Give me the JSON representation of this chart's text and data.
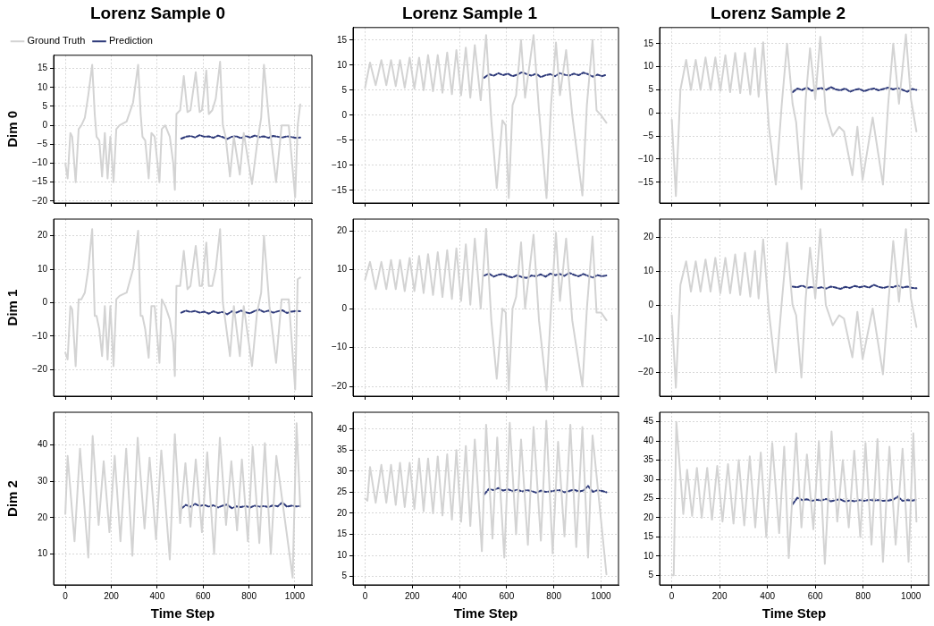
{
  "chart_data": [
    {
      "type": "line",
      "title": "Lorenz Sample 0",
      "ylabel": "Dim 0",
      "xlim": [
        -51,
        1074
      ],
      "xticks": [
        0,
        200,
        400,
        600,
        800,
        1000
      ],
      "ylim": [
        -20.5,
        18.5
      ],
      "yticks": [
        -20,
        -15,
        -10,
        -5,
        0,
        5,
        10,
        15
      ],
      "tick_labels": "y",
      "grid": true,
      "legend": "top left",
      "marker": "none",
      "series": [
        {
          "name": "Ground Truth",
          "color": "#d3d3d3",
          "line_style": "solid",
          "x": [
            0,
            10,
            22,
            30,
            45,
            58,
            70,
            85,
            100,
            117,
            128,
            136,
            148,
            160,
            172,
            184,
            196,
            210,
            222,
            236,
            267,
            295,
            317,
            328,
            336,
            348,
            363,
            375,
            389,
            410,
            420,
            435,
            455,
            470,
            477,
            484,
            500,
            516,
            532,
            545,
            568,
            585,
            595,
            614,
            625,
            640,
            655,
            674,
            686,
            698,
            717,
            734,
            760,
            777,
            813,
            835,
            853,
            865,
            889,
            918,
            942,
            973,
            1001,
            1012,
            1023
          ],
          "values": [
            -10,
            -14,
            -2,
            -3,
            -15,
            -1,
            0,
            2,
            8,
            16,
            3,
            -3,
            -4,
            -13.5,
            -2,
            -14,
            -3,
            -15,
            -1,
            0,
            1,
            6,
            16,
            3,
            -3,
            -4,
            -14,
            -2,
            -3,
            -15,
            -1,
            0,
            -3,
            -10,
            -17,
            3,
            4,
            13,
            3.5,
            4,
            14,
            3.5,
            4,
            14.5,
            3,
            4,
            7,
            16.8,
            0,
            -3,
            -13.5,
            -3,
            -13,
            -2,
            -15.5,
            -5,
            2,
            16,
            0,
            -15,
            0,
            0,
            -19,
            0,
            5.5
          ]
        },
        {
          "name": "Prediction",
          "color": "#2e3a7a",
          "line_style": "dashed",
          "x": [
            505,
            525,
            545,
            565,
            585,
            605,
            625,
            645,
            665,
            685,
            705,
            725,
            745,
            765,
            785,
            805,
            825,
            845,
            865,
            885,
            905,
            925,
            945,
            965,
            985,
            1005,
            1023
          ],
          "values": [
            -3.5,
            -3,
            -2.8,
            -3.2,
            -2.6,
            -3,
            -2.9,
            -3.3,
            -2.7,
            -3.1,
            -3.6,
            -3,
            -2.9,
            -3.4,
            -2.8,
            -3.2,
            -2.7,
            -3.1,
            -2.9,
            -3.3,
            -2.8,
            -3,
            -3.2,
            -2.9,
            -3.1,
            -3.3,
            -3.2
          ]
        }
      ]
    },
    {
      "type": "line",
      "title": "Lorenz Sample 1",
      "xlim": [
        -51,
        1074
      ],
      "xticks": [
        0,
        200,
        400,
        600,
        800,
        1000
      ],
      "ylim": [
        -17.5,
        17.5
      ],
      "yticks": [
        -15,
        -10,
        -5,
        0,
        5,
        10,
        15
      ],
      "tick_labels": "y",
      "grid": true,
      "marker": "none",
      "series": [
        {
          "color": "#d3d3d3",
          "line_style": "solid",
          "x": [
            0,
            21,
            45,
            69,
            90,
            110,
            130,
            148,
            168,
            189,
            209,
            229,
            248,
            267,
            288,
            308,
            328,
            348,
            368,
            387,
            407,
            427,
            446,
            465,
            490,
            513,
            535,
            558,
            582,
            596,
            609,
            625,
            640,
            661,
            678,
            714,
            737,
            769,
            788,
            809,
            826,
            852,
            878,
            921,
            940,
            964,
            981,
            1000,
            1023
          ],
          "values": [
            5.5,
            10.5,
            6,
            11,
            6,
            11,
            5.8,
            11,
            5.5,
            11.5,
            5.3,
            11.5,
            5,
            12,
            4.8,
            12,
            4.5,
            12.5,
            4.2,
            13,
            4,
            13.5,
            3.5,
            14,
            3,
            16,
            -1,
            -14.5,
            -1,
            -2,
            -16.5,
            2,
            4,
            15,
            3.5,
            16,
            1,
            -16.5,
            2,
            14.5,
            4,
            13,
            0,
            -16,
            2,
            15,
            1,
            0,
            -1.5
          ]
        },
        {
          "color": "#2e3a7a",
          "line_style": "dashed",
          "x": [
            505,
            525,
            545,
            565,
            585,
            605,
            625,
            645,
            665,
            685,
            705,
            725,
            745,
            765,
            785,
            805,
            825,
            845,
            865,
            885,
            905,
            925,
            945,
            965,
            985,
            1005,
            1023
          ],
          "values": [
            7.5,
            8.2,
            7.9,
            8.4,
            8,
            8.3,
            7.8,
            8.1,
            8.6,
            8.2,
            7.9,
            8.3,
            7.6,
            8,
            8.2,
            7.8,
            8.4,
            8.1,
            7.9,
            8.3,
            8,
            8.5,
            8.2,
            7.7,
            8.1,
            7.8,
            8.1
          ]
        }
      ]
    },
    {
      "type": "line",
      "title": "Lorenz Sample 2",
      "xlim": [
        -51,
        1074
      ],
      "xticks": [
        0,
        200,
        400,
        600,
        800,
        1000
      ],
      "ylim": [
        -19.5,
        18.5
      ],
      "yticks": [
        -15,
        -10,
        -5,
        0,
        5,
        10,
        15
      ],
      "tick_labels": "y",
      "grid": true,
      "marker": "none",
      "series": [
        {
          "color": "#d3d3d3",
          "line_style": "solid",
          "x": [
            0,
            17,
            36,
            60,
            80,
            100,
            120,
            141,
            162,
            182,
            203,
            224,
            244,
            265,
            286,
            306,
            328,
            348,
            363,
            382,
            406,
            435,
            460,
            482,
            505,
            520,
            542,
            560,
            578,
            600,
            621,
            644,
            673,
            700,
            720,
            755,
            776,
            798,
            840,
            883,
            905,
            926,
            950,
            979,
            1000,
            1023
          ],
          "values": [
            -1.5,
            -18,
            5,
            11.5,
            5,
            11.5,
            5,
            12,
            5,
            12,
            4.8,
            12.5,
            4.5,
            13,
            4.3,
            13,
            4,
            14,
            3.5,
            15.3,
            -3,
            -15.5,
            2,
            15,
            2,
            -2,
            -16.5,
            3,
            14,
            3,
            16.5,
            0,
            -5,
            -3,
            -4,
            -13.5,
            -3,
            -14.5,
            -1,
            -15.5,
            2,
            15,
            2,
            17,
            3,
            -4
          ]
        },
        {
          "color": "#2e3a7a",
          "line_style": "dashed",
          "x": [
            505,
            525,
            545,
            565,
            585,
            605,
            625,
            645,
            665,
            685,
            705,
            725,
            745,
            765,
            785,
            805,
            825,
            845,
            865,
            885,
            905,
            925,
            945,
            965,
            985,
            1005,
            1023
          ],
          "values": [
            4.5,
            5.3,
            5,
            5.5,
            4.8,
            5.2,
            5.4,
            5,
            5.6,
            5.1,
            4.9,
            5.3,
            4.6,
            5,
            5.2,
            4.7,
            5.1,
            5.3,
            4.9,
            5.2,
            5.5,
            5.1,
            5.4,
            5,
            4.6,
            5.2,
            5
          ]
        }
      ]
    },
    {
      "type": "line",
      "ylabel": "Dim 1",
      "xlim": [
        -51,
        1074
      ],
      "xticks": [
        0,
        200,
        400,
        600,
        800,
        1000
      ],
      "ylim": [
        -28,
        25
      ],
      "yticks": [
        -20,
        -10,
        0,
        10,
        20
      ],
      "tick_labels": "y",
      "grid": true,
      "marker": "none",
      "series": [
        {
          "color": "#d3d3d3",
          "line_style": "solid",
          "x": [
            0,
            10,
            22,
            30,
            45,
            58,
            70,
            85,
            100,
            117,
            128,
            136,
            148,
            160,
            172,
            184,
            196,
            210,
            222,
            236,
            267,
            295,
            317,
            328,
            336,
            348,
            363,
            375,
            389,
            410,
            420,
            435,
            455,
            470,
            477,
            484,
            500,
            516,
            532,
            545,
            568,
            585,
            595,
            614,
            625,
            640,
            655,
            674,
            686,
            698,
            717,
            734,
            760,
            777,
            813,
            835,
            853,
            865,
            889,
            918,
            942,
            973,
            1001,
            1012,
            1023
          ],
          "values": [
            -15,
            -17,
            -1,
            -2,
            -19,
            1,
            1,
            3,
            10,
            22,
            -4,
            -4,
            -8,
            -16,
            -1,
            -17,
            -1,
            -19,
            1,
            2,
            3,
            10,
            21.5,
            -4,
            -4,
            -8,
            -16.5,
            -1,
            -1,
            -18,
            1,
            -1,
            -5,
            -12,
            -22,
            5,
            5,
            15.5,
            4,
            5,
            17,
            5,
            5,
            18,
            5,
            5,
            10,
            22,
            0,
            -6,
            -16,
            -1,
            -16,
            -1,
            -19,
            -3,
            3,
            20,
            -1,
            -18,
            1,
            1,
            -26,
            7,
            7.5
          ]
        },
        {
          "color": "#2e3a7a",
          "line_style": "dashed",
          "x": [
            505,
            525,
            545,
            565,
            585,
            605,
            625,
            645,
            665,
            685,
            705,
            725,
            745,
            765,
            785,
            805,
            825,
            845,
            865,
            885,
            905,
            925,
            945,
            965,
            985,
            1005,
            1023
          ],
          "values": [
            -3,
            -2.4,
            -2.8,
            -2.5,
            -3,
            -2.7,
            -3.3,
            -2.6,
            -3.1,
            -2.8,
            -3.5,
            -2.6,
            -3,
            -2.4,
            -2.9,
            -3.2,
            -2.5,
            -2.1,
            -2.8,
            -2.4,
            -3,
            -2.6,
            -2.3,
            -3.1,
            -2.7,
            -2.5,
            -2.6
          ]
        }
      ]
    },
    {
      "type": "line",
      "xlim": [
        -51,
        1074
      ],
      "xticks": [
        0,
        200,
        400,
        600,
        800,
        1000
      ],
      "ylim": [
        -22.5,
        23
      ],
      "yticks": [
        -20,
        -10,
        0,
        10,
        20
      ],
      "tick_labels": "y",
      "grid": true,
      "marker": "none",
      "series": [
        {
          "color": "#d3d3d3",
          "line_style": "solid",
          "x": [
            0,
            21,
            45,
            69,
            90,
            110,
            130,
            148,
            168,
            189,
            209,
            229,
            248,
            267,
            288,
            308,
            328,
            348,
            368,
            387,
            407,
            427,
            446,
            465,
            490,
            513,
            535,
            558,
            582,
            596,
            609,
            625,
            640,
            661,
            678,
            714,
            737,
            769,
            788,
            809,
            826,
            852,
            878,
            921,
            940,
            964,
            981,
            1000,
            1023
          ],
          "values": [
            7.5,
            12,
            5,
            12,
            5,
            12.5,
            5,
            12.5,
            4.5,
            13,
            4.5,
            13.5,
            4,
            14,
            3.5,
            14.5,
            3,
            15,
            2.5,
            15.5,
            2,
            16.5,
            1,
            18,
            0,
            20.5,
            -3,
            -18,
            0,
            -1,
            -21,
            0,
            3,
            17,
            0,
            19,
            -3,
            -21,
            0,
            19.5,
            2,
            18,
            -3,
            -20,
            0,
            18.5,
            -1,
            -1,
            -3
          ]
        },
        {
          "color": "#2e3a7a",
          "line_style": "dashed",
          "x": [
            505,
            525,
            545,
            565,
            585,
            605,
            625,
            645,
            665,
            685,
            705,
            725,
            745,
            765,
            785,
            805,
            825,
            845,
            865,
            885,
            905,
            925,
            945,
            965,
            985,
            1005,
            1023
          ],
          "values": [
            8.5,
            9,
            8.2,
            8.7,
            8.9,
            8.3,
            8,
            8.6,
            8.1,
            7.9,
            8.5,
            8.3,
            8.8,
            8.2,
            9,
            8.6,
            8.9,
            8.4,
            9.2,
            8.7,
            8.3,
            8.9,
            8.4,
            8,
            8.6,
            8.3,
            8.5
          ]
        }
      ]
    },
    {
      "type": "line",
      "xlim": [
        -51,
        1074
      ],
      "xticks": [
        0,
        200,
        400,
        600,
        800,
        1000
      ],
      "ylim": [
        -27,
        25.5
      ],
      "yticks": [
        -20,
        -10,
        0,
        10,
        20
      ],
      "tick_labels": "y",
      "grid": true,
      "marker": "none",
      "series": [
        {
          "color": "#d3d3d3",
          "line_style": "solid",
          "x": [
            0,
            17,
            36,
            60,
            80,
            100,
            120,
            141,
            162,
            182,
            203,
            224,
            244,
            265,
            286,
            306,
            328,
            348,
            363,
            382,
            406,
            435,
            460,
            482,
            505,
            520,
            542,
            560,
            578,
            600,
            621,
            644,
            673,
            700,
            720,
            755,
            776,
            798,
            840,
            883,
            905,
            926,
            950,
            979,
            1000,
            1023
          ],
          "values": [
            -3,
            -24.5,
            6,
            13,
            4,
            13,
            4,
            13.5,
            4,
            14,
            3.5,
            14,
            3.5,
            15,
            3,
            15.5,
            2.5,
            16,
            2,
            19.5,
            -2,
            -20,
            1,
            18.5,
            0,
            -3,
            -21.5,
            2,
            17,
            2,
            22.5,
            0,
            -6,
            -3,
            -4,
            -15.5,
            -2,
            -16,
            -1,
            -20.5,
            0,
            19,
            1,
            22.5,
            2,
            -6.5
          ]
        },
        {
          "color": "#2e3a7a",
          "line_style": "dashed",
          "x": [
            505,
            525,
            545,
            565,
            585,
            605,
            625,
            645,
            665,
            685,
            705,
            725,
            745,
            765,
            785,
            805,
            825,
            845,
            865,
            885,
            905,
            925,
            945,
            965,
            985,
            1005,
            1023
          ],
          "values": [
            5.5,
            5.3,
            5.8,
            5.1,
            5.4,
            5,
            5.3,
            4.9,
            5.5,
            5.2,
            4.8,
            5.4,
            5.1,
            5.7,
            5.3,
            5.6,
            5.2,
            6,
            5.4,
            5.1,
            5.5,
            5.3,
            5.8,
            5.2,
            5.5,
            5.1,
            5
          ]
        }
      ]
    },
    {
      "type": "line",
      "ylabel": "Dim 2",
      "xlabel": "Time Step",
      "xlim": [
        -51,
        1074
      ],
      "xticks": [
        0,
        200,
        400,
        600,
        800,
        1000
      ],
      "ylim": [
        1.5,
        49
      ],
      "yticks": [
        10,
        20,
        30,
        40
      ],
      "grid": true,
      "marker": "none",
      "series": [
        {
          "color": "#d3d3d3",
          "line_style": "solid",
          "x": [
            0,
            10,
            40,
            64,
            100,
            119,
            145,
            167,
            192,
            215,
            240,
            265,
            292,
            315,
            345,
            367,
            395,
            418,
            455,
            477,
            500,
            523,
            545,
            568,
            595,
            618,
            648,
            673,
            700,
            723,
            748,
            769,
            795,
            816,
            845,
            869,
            895,
            919,
            990,
            1007,
            1023
          ],
          "values": [
            21,
            37,
            13.5,
            39,
            9,
            42.5,
            18,
            35.5,
            16,
            37,
            13.5,
            39,
            9.5,
            42,
            17,
            36.5,
            14,
            38.5,
            8.5,
            43,
            18.5,
            35,
            17.5,
            36,
            16,
            38,
            10,
            42,
            18,
            35.5,
            16.5,
            36,
            13.5,
            39.5,
            13,
            40.5,
            10,
            37,
            3.5,
            46,
            23
          ]
        },
        {
          "color": "#2e3a7a",
          "line_style": "dashed",
          "x": [
            505,
            525,
            545,
            565,
            585,
            605,
            625,
            645,
            665,
            685,
            705,
            725,
            745,
            765,
            785,
            805,
            825,
            845,
            865,
            885,
            905,
            925,
            945,
            965,
            985,
            1005,
            1023
          ],
          "values": [
            22.5,
            23.5,
            23,
            23.8,
            23.2,
            23.5,
            23,
            23.4,
            22.8,
            23.3,
            23.6,
            22.6,
            23.1,
            22.9,
            23.2,
            22.8,
            23.3,
            23,
            23.2,
            22.9,
            23.4,
            23.1,
            24.2,
            23,
            23.3,
            23.1,
            23.2
          ]
        }
      ]
    },
    {
      "type": "line",
      "xlabel": "Time Step",
      "xlim": [
        -51,
        1074
      ],
      "xticks": [
        0,
        200,
        400,
        600,
        800,
        1000
      ],
      "ylim": [
        3,
        44
      ],
      "yticks": [
        5,
        10,
        15,
        20,
        25,
        30,
        35,
        40
      ],
      "grid": true,
      "marker": "none",
      "series": [
        {
          "color": "#d3d3d3",
          "line_style": "solid",
          "x": [
            0,
            10,
            21,
            45,
            69,
            90,
            110,
            130,
            148,
            168,
            189,
            209,
            229,
            248,
            267,
            288,
            308,
            328,
            348,
            368,
            387,
            407,
            427,
            446,
            465,
            495,
            513,
            540,
            560,
            590,
            613,
            640,
            661,
            690,
            714,
            745,
            768,
            795,
            818,
            845,
            870,
            895,
            921,
            945,
            964,
            1023
          ],
          "values": [
            23.5,
            23,
            31,
            22.5,
            31.5,
            22.5,
            31.5,
            22,
            32,
            21.5,
            32,
            21,
            33,
            20.5,
            33,
            20,
            33.5,
            19.5,
            34,
            18.5,
            35,
            18,
            36,
            17,
            37.5,
            11,
            41,
            14,
            38,
            9.5,
            41.5,
            15,
            37.5,
            12.5,
            40.5,
            13.5,
            42,
            10.5,
            37,
            14.5,
            41,
            12,
            40.5,
            9.5,
            38.5,
            5.5
          ]
        },
        {
          "color": "#2e3a7a",
          "line_style": "dashed",
          "x": [
            505,
            525,
            545,
            565,
            585,
            605,
            625,
            645,
            665,
            685,
            705,
            725,
            745,
            765,
            785,
            805,
            825,
            845,
            865,
            885,
            905,
            925,
            945,
            965,
            985,
            1005,
            1023
          ],
          "values": [
            24.5,
            25.8,
            25.5,
            26,
            25.4,
            25.7,
            25.3,
            25.6,
            25.2,
            25.5,
            25.3,
            24.9,
            25.4,
            25.1,
            25.2,
            25.4,
            25.5,
            25,
            25.3,
            25.6,
            25.2,
            25.4,
            26.5,
            25.1,
            25.5,
            25.3,
            25
          ]
        }
      ]
    },
    {
      "type": "line",
      "xlabel": "Time Step",
      "xlim": [
        -51,
        1074
      ],
      "xticks": [
        0,
        200,
        400,
        600,
        800,
        1000
      ],
      "ylim": [
        2.5,
        47.5
      ],
      "yticks": [
        5,
        10,
        15,
        20,
        25,
        30,
        35,
        40,
        45
      ],
      "grid": true,
      "marker": "none",
      "series": [
        {
          "color": "#d3d3d3",
          "line_style": "solid",
          "x": [
            0,
            8,
            19,
            48,
            64,
            85,
            105,
            125,
            148,
            168,
            190,
            212,
            235,
            258,
            280,
            303,
            326,
            349,
            372,
            395,
            420,
            449,
            470,
            489,
            520,
            542,
            565,
            592,
            615,
            640,
            668,
            692,
            715,
            740,
            763,
            788,
            810,
            835,
            860,
            883,
            910,
            936,
            965,
            990,
            1010,
            1023
          ],
          "values": [
            5,
            5,
            45,
            21,
            32.5,
            20.5,
            33,
            20,
            33,
            19.5,
            33.5,
            19,
            34,
            18.5,
            35,
            18,
            36,
            17.5,
            37,
            15,
            39.5,
            16,
            38.5,
            9.5,
            42,
            17.5,
            36.5,
            17,
            40,
            8,
            42.5,
            19,
            35,
            17.5,
            37.5,
            15,
            39.5,
            13,
            40.5,
            8.5,
            38.5,
            13,
            38,
            8.5,
            42,
            19
          ]
        },
        {
          "color": "#2e3a7a",
          "line_style": "dashed",
          "x": [
            505,
            525,
            545,
            565,
            585,
            605,
            625,
            645,
            665,
            685,
            705,
            725,
            745,
            765,
            785,
            805,
            825,
            845,
            865,
            885,
            905,
            925,
            945,
            965,
            985,
            1005,
            1023
          ],
          "values": [
            23.5,
            25.2,
            24.6,
            24.8,
            24.4,
            24.7,
            24.5,
            24.9,
            24.3,
            24.6,
            24.8,
            24.2,
            24.5,
            24.3,
            24.6,
            24.4,
            24.7,
            24.5,
            24.6,
            24.4,
            24.5,
            24.7,
            25.5,
            24.4,
            24.6,
            24.5,
            24.7
          ]
        }
      ]
    }
  ]
}
